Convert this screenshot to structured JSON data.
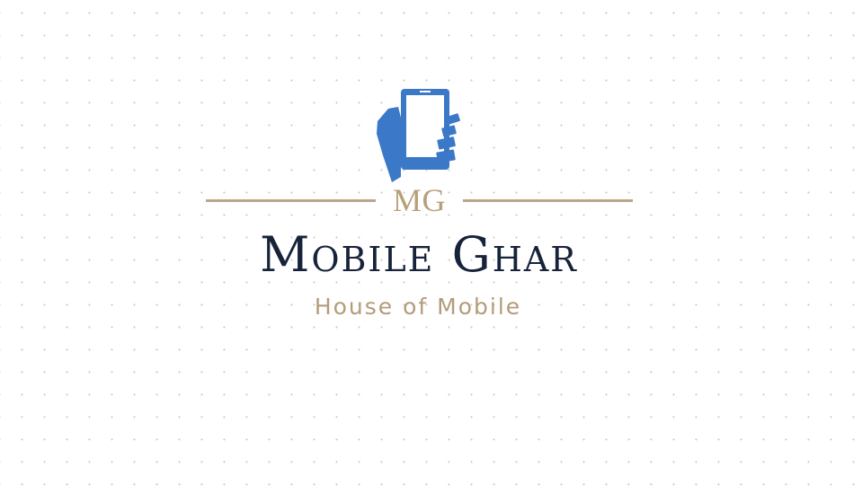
{
  "logo": {
    "icon": "hand-holding-phone-icon",
    "monogram": "MG",
    "title": "Mobile Ghar",
    "tagline": "House of Mobile"
  },
  "colors": {
    "background": "#ffffff",
    "dot_grid": "#c9c9c9",
    "icon_blue": "#3b78c7",
    "gold": "#b7a07a",
    "navy": "#17233a"
  }
}
